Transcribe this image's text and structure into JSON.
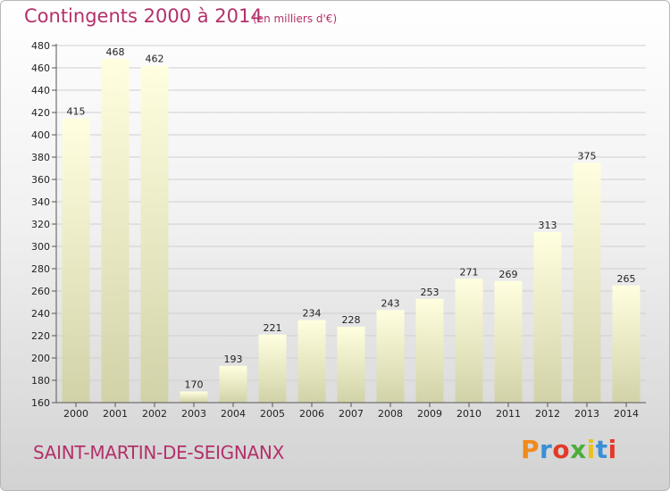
{
  "header": {
    "title": "Contingents 2000 à 2014",
    "subtitle": "(en milliers d'€)"
  },
  "footer": {
    "town": "SAINT-MARTIN-DE-SEIGNANX",
    "logo_text": "Proxiti",
    "logo_colors": [
      "#f08a1c",
      "#3a8fd6",
      "#e23a2a",
      "#4cae3a",
      "#e6c21e",
      "#3a8fd6",
      "#e23a2a"
    ]
  },
  "chart_data": {
    "type": "bar",
    "title": "Contingents 2000 à 2014",
    "subtitle": "(en milliers d'€)",
    "xlabel": "",
    "ylabel": "",
    "categories": [
      "2000",
      "2001",
      "2002",
      "2003",
      "2004",
      "2005",
      "2006",
      "2007",
      "2008",
      "2009",
      "2010",
      "2011",
      "2012",
      "2013",
      "2014"
    ],
    "values": [
      415,
      468,
      462,
      170,
      193,
      221,
      234,
      228,
      243,
      253,
      271,
      269,
      313,
      375,
      265
    ],
    "ylim": [
      160,
      480
    ],
    "yticks": [
      160,
      180,
      200,
      220,
      240,
      260,
      280,
      300,
      320,
      340,
      360,
      380,
      400,
      420,
      440,
      460,
      480
    ],
    "grid": true,
    "bar_color_top": "#ffffe0",
    "bar_color_bottom": "#d2d2a8"
  }
}
